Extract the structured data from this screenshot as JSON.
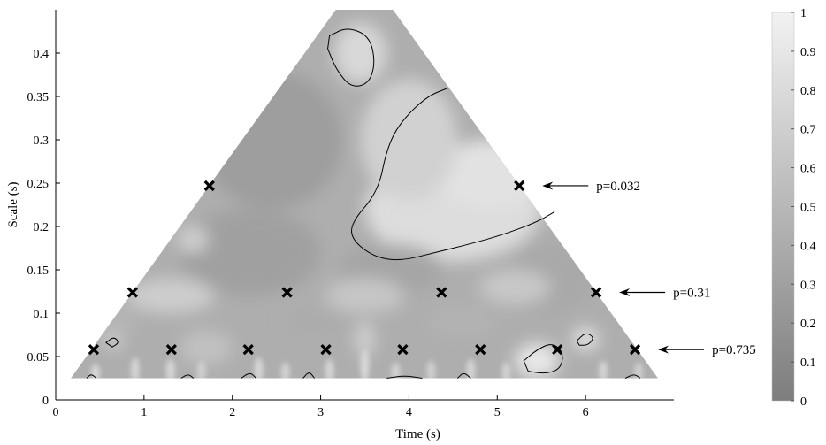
{
  "chart_data": {
    "type": "heatmap",
    "title": "",
    "xlabel": "Time (s)",
    "ylabel": "Scale (s)",
    "xlim": [
      0,
      7
    ],
    "ylim": [
      0,
      0.45
    ],
    "x_ticks": [
      "0",
      "1",
      "2",
      "3",
      "4",
      "5",
      "6"
    ],
    "y_ticks": [
      "0",
      "0.05",
      "0.1",
      "0.15",
      "0.2",
      "0.25",
      "0.3",
      "0.35",
      "0.4"
    ],
    "colorbar": {
      "range": [
        0,
        1
      ],
      "ticks": [
        "0",
        "0.1",
        "0.2",
        "0.3",
        "0.4",
        "0.5",
        "0.6",
        "0.7",
        "0.8",
        "0.9",
        "1"
      ],
      "color_low": "#7d7d7d",
      "color_high": "#f2f2f2"
    },
    "cone_of_influence": [
      [
        0.17,
        0.025
      ],
      [
        3.17,
        0.45
      ],
      [
        3.82,
        0.45
      ],
      [
        6.82,
        0.025
      ]
    ],
    "markers": [
      {
        "x": 0.43,
        "y": 0.058
      },
      {
        "x": 1.31,
        "y": 0.058
      },
      {
        "x": 2.18,
        "y": 0.058
      },
      {
        "x": 3.06,
        "y": 0.058
      },
      {
        "x": 3.93,
        "y": 0.058
      },
      {
        "x": 4.81,
        "y": 0.058
      },
      {
        "x": 5.68,
        "y": 0.058
      },
      {
        "x": 6.56,
        "y": 0.058
      },
      {
        "x": 0.87,
        "y": 0.124
      },
      {
        "x": 2.62,
        "y": 0.124
      },
      {
        "x": 4.37,
        "y": 0.124
      },
      {
        "x": 6.12,
        "y": 0.124
      },
      {
        "x": 1.74,
        "y": 0.247
      },
      {
        "x": 5.25,
        "y": 0.247
      }
    ],
    "annotations": [
      {
        "text": "p=0.032",
        "x": 5.25,
        "y": 0.247
      },
      {
        "text": "p=0.31",
        "x": 6.12,
        "y": 0.124
      },
      {
        "text": "p=0.735",
        "x": 6.56,
        "y": 0.058
      }
    ],
    "blobs": [
      {
        "x": 4.5,
        "y": 0.22,
        "rx": 1.0,
        "ry": 0.06,
        "v": 0.82
      },
      {
        "x": 4.9,
        "y": 0.26,
        "rx": 0.6,
        "ry": 0.04,
        "v": 0.86
      },
      {
        "x": 4.0,
        "y": 0.3,
        "rx": 0.55,
        "ry": 0.07,
        "v": 0.72
      },
      {
        "x": 3.45,
        "y": 0.4,
        "rx": 0.3,
        "ry": 0.035,
        "v": 0.78
      },
      {
        "x": 2.45,
        "y": 0.3,
        "rx": 0.8,
        "ry": 0.08,
        "v": 0.28
      },
      {
        "x": 2.2,
        "y": 0.17,
        "rx": 0.8,
        "ry": 0.05,
        "v": 0.3
      },
      {
        "x": 3.8,
        "y": 0.15,
        "rx": 0.6,
        "ry": 0.03,
        "v": 0.35
      },
      {
        "x": 5.6,
        "y": 0.14,
        "rx": 0.5,
        "ry": 0.04,
        "v": 0.38
      },
      {
        "x": 1.3,
        "y": 0.12,
        "rx": 0.5,
        "ry": 0.02,
        "v": 0.68
      },
      {
        "x": 3.5,
        "y": 0.12,
        "rx": 0.45,
        "ry": 0.02,
        "v": 0.62
      },
      {
        "x": 5.2,
        "y": 0.13,
        "rx": 0.4,
        "ry": 0.02,
        "v": 0.64
      },
      {
        "x": 1.55,
        "y": 0.185,
        "rx": 0.18,
        "ry": 0.015,
        "v": 0.7
      },
      {
        "x": 5.45,
        "y": 0.045,
        "rx": 0.25,
        "ry": 0.02,
        "v": 0.92
      },
      {
        "x": 6.0,
        "y": 0.07,
        "rx": 0.15,
        "ry": 0.013,
        "v": 0.88
      },
      {
        "x": 0.65,
        "y": 0.07,
        "rx": 0.1,
        "ry": 0.01,
        "v": 0.85
      },
      {
        "x": 1.7,
        "y": 0.06,
        "rx": 0.3,
        "ry": 0.02,
        "v": 0.58
      },
      {
        "x": 3.5,
        "y": 0.07,
        "rx": 0.1,
        "ry": 0.02,
        "v": 0.74
      },
      {
        "x": 2.9,
        "y": 0.09,
        "rx": 0.3,
        "ry": 0.015,
        "v": 0.4
      },
      {
        "x": 4.6,
        "y": 0.09,
        "rx": 0.4,
        "ry": 0.02,
        "v": 0.45
      },
      {
        "x": 0.6,
        "y": 0.09,
        "rx": 0.3,
        "ry": 0.02,
        "v": 0.48
      }
    ],
    "contours": [
      {
        "points": [
          [
            4.45,
            0.36
          ],
          [
            4.2,
            0.35
          ],
          [
            3.9,
            0.32
          ],
          [
            3.75,
            0.29
          ],
          [
            3.65,
            0.24
          ],
          [
            3.35,
            0.205
          ],
          [
            3.35,
            0.185
          ],
          [
            3.6,
            0.165
          ],
          [
            3.9,
            0.16
          ],
          [
            4.3,
            0.17
          ],
          [
            4.7,
            0.18
          ],
          [
            5.05,
            0.19
          ],
          [
            5.45,
            0.205
          ],
          [
            5.65,
            0.217
          ]
        ],
        "closed": false
      },
      {
        "points": [
          [
            3.1,
            0.42
          ],
          [
            3.3,
            0.43
          ],
          [
            3.55,
            0.42
          ],
          [
            3.62,
            0.39
          ],
          [
            3.55,
            0.365
          ],
          [
            3.35,
            0.36
          ],
          [
            3.18,
            0.38
          ],
          [
            3.08,
            0.405
          ]
        ],
        "closed": true
      },
      {
        "points": [
          [
            5.3,
            0.045
          ],
          [
            5.45,
            0.058
          ],
          [
            5.62,
            0.066
          ],
          [
            5.75,
            0.055
          ],
          [
            5.72,
            0.036
          ],
          [
            5.55,
            0.03
          ],
          [
            5.35,
            0.033
          ]
        ],
        "closed": true
      },
      {
        "points": [
          [
            5.9,
            0.068
          ],
          [
            6.0,
            0.078
          ],
          [
            6.1,
            0.072
          ],
          [
            6.03,
            0.063
          ],
          [
            5.93,
            0.063
          ]
        ],
        "closed": true
      },
      {
        "points": [
          [
            0.57,
            0.066
          ],
          [
            0.66,
            0.073
          ],
          [
            0.72,
            0.066
          ],
          [
            0.64,
            0.061
          ]
        ],
        "closed": true
      },
      {
        "points": [
          [
            0.35,
            0.025
          ],
          [
            0.4,
            0.03
          ],
          [
            0.46,
            0.025
          ]
        ],
        "closed": false
      },
      {
        "points": [
          [
            1.42,
            0.025
          ],
          [
            1.5,
            0.03
          ],
          [
            1.56,
            0.025
          ]
        ],
        "closed": false
      },
      {
        "points": [
          [
            2.1,
            0.025
          ],
          [
            2.2,
            0.032
          ],
          [
            2.27,
            0.025
          ]
        ],
        "closed": false
      },
      {
        "points": [
          [
            2.8,
            0.025
          ],
          [
            2.87,
            0.033
          ],
          [
            2.93,
            0.025
          ]
        ],
        "closed": false
      },
      {
        "points": [
          [
            3.75,
            0.025
          ],
          [
            3.95,
            0.028
          ],
          [
            4.15,
            0.025
          ]
        ],
        "closed": false
      },
      {
        "points": [
          [
            4.55,
            0.025
          ],
          [
            4.62,
            0.032
          ],
          [
            4.7,
            0.025
          ]
        ],
        "closed": false
      },
      {
        "points": [
          [
            6.45,
            0.025
          ],
          [
            6.55,
            0.03
          ],
          [
            6.62,
            0.025
          ]
        ],
        "closed": false
      }
    ],
    "stripe_base": 0.025,
    "stripes": [
      {
        "x": 0.45,
        "h": 0.012,
        "v": 0.78
      },
      {
        "x": 0.9,
        "h": 0.02,
        "v": 0.74
      },
      {
        "x": 1.3,
        "h": 0.018,
        "v": 0.76
      },
      {
        "x": 1.65,
        "h": 0.016,
        "v": 0.7
      },
      {
        "x": 2.3,
        "h": 0.02,
        "v": 0.76
      },
      {
        "x": 2.6,
        "h": 0.014,
        "v": 0.72
      },
      {
        "x": 3.1,
        "h": 0.018,
        "v": 0.74
      },
      {
        "x": 3.5,
        "h": 0.03,
        "v": 0.78
      },
      {
        "x": 3.85,
        "h": 0.014,
        "v": 0.72
      },
      {
        "x": 4.25,
        "h": 0.016,
        "v": 0.7
      },
      {
        "x": 4.7,
        "h": 0.018,
        "v": 0.74
      },
      {
        "x": 5.1,
        "h": 0.014,
        "v": 0.72
      },
      {
        "x": 6.2,
        "h": 0.016,
        "v": 0.74
      },
      {
        "x": 6.6,
        "h": 0.014,
        "v": 0.7
      }
    ]
  }
}
